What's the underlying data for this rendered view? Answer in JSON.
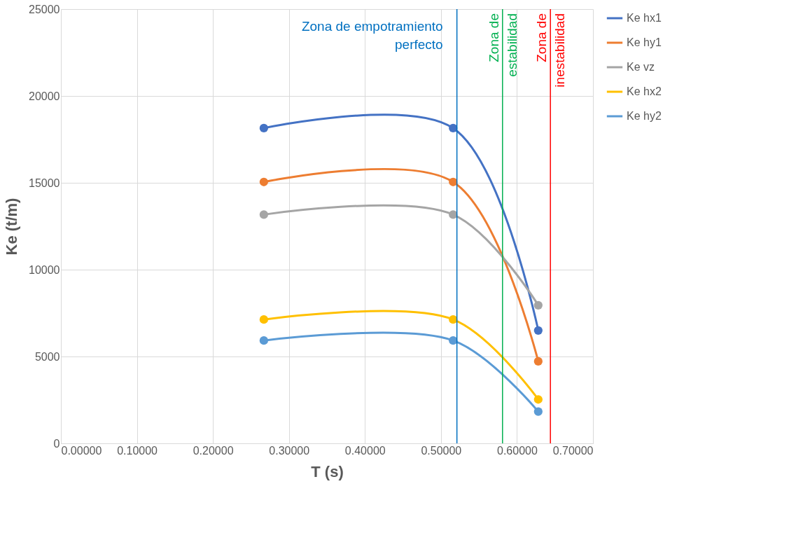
{
  "chart_data": {
    "type": "line",
    "xlabel": "T (s)",
    "ylabel": "Ke (t/m)",
    "x": [
      0.267,
      0.516,
      0.628
    ],
    "series": [
      {
        "name": "Ke hx1",
        "color": "#4472c4",
        "values": [
          18150,
          18150,
          6500
        ]
      },
      {
        "name": "Ke hy1",
        "color": "#ed7d31",
        "values": [
          15050,
          15050,
          4720
        ]
      },
      {
        "name": "Ke vz",
        "color": "#a5a5a5",
        "values": [
          13170,
          13170,
          7950
        ]
      },
      {
        "name": "Ke hx2",
        "color": "#ffc000",
        "values": [
          7130,
          7130,
          2530
        ]
      },
      {
        "name": "Ke hy2",
        "color": "#5b9bd5",
        "values": [
          5920,
          5920,
          1830
        ]
      }
    ],
    "xlim": [
      0,
      0.7
    ],
    "xticks": [
      {
        "value": 0,
        "label": "0.00000"
      },
      {
        "value": 0.1,
        "label": "0.10000"
      },
      {
        "value": 0.2,
        "label": "0.20000"
      },
      {
        "value": 0.3,
        "label": "0.30000"
      },
      {
        "value": 0.4,
        "label": "0.40000"
      },
      {
        "value": 0.5,
        "label": "0.50000"
      },
      {
        "value": 0.6,
        "label": "0.60000"
      },
      {
        "value": 0.7,
        "label": "0.70000"
      }
    ],
    "ylim": [
      0,
      25000
    ],
    "yticks": [
      0,
      5000,
      10000,
      15000,
      20000,
      25000
    ],
    "ref_lines": [
      {
        "axis": "x",
        "value": 0.521,
        "label": "Zona de empotramiento perfecto",
        "color": "#0070c0"
      },
      {
        "axis": "x",
        "value": 0.581,
        "label": "Zona de estabilidad",
        "color": "#00b050"
      },
      {
        "axis": "x",
        "value": 0.644,
        "label": "Zona de inestabilidad",
        "color": "#ff0000"
      }
    ],
    "grid": true,
    "legend": "right",
    "marker": "circle",
    "line_style": "solid"
  }
}
